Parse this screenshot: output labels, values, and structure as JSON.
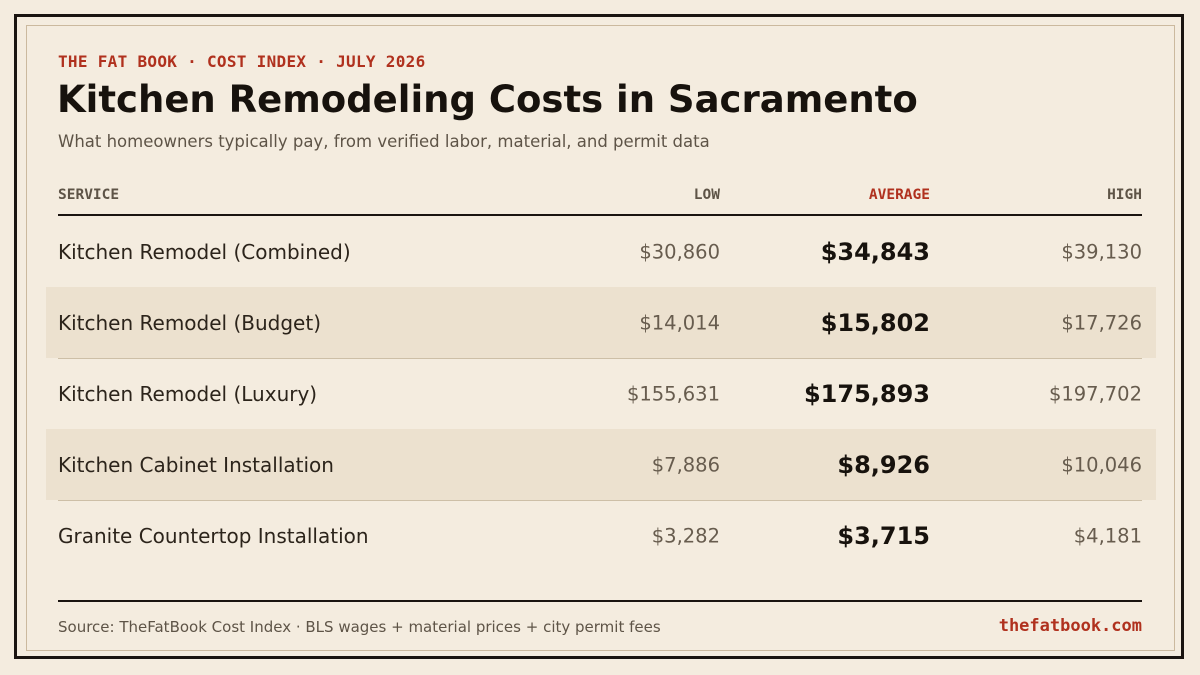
{
  "header": {
    "kicker": "THE FAT BOOK · COST INDEX · JULY 2026",
    "title": "Kitchen Remodeling Costs in Sacramento",
    "subtitle": "What homeowners typically pay, from verified labor, material, and permit data"
  },
  "table": {
    "columns": {
      "service": "SERVICE",
      "low": "LOW",
      "average": "AVERAGE",
      "high": "HIGH"
    },
    "rows": [
      {
        "service": "Kitchen Remodel (Combined)",
        "low": "$30,860",
        "average": "$34,843",
        "high": "$39,130"
      },
      {
        "service": "Kitchen Remodel (Budget)",
        "low": "$14,014",
        "average": "$15,802",
        "high": "$17,726"
      },
      {
        "service": "Kitchen Remodel (Luxury)",
        "low": "$155,631",
        "average": "$175,893",
        "high": "$197,702"
      },
      {
        "service": "Kitchen Cabinet Installation",
        "low": "$7,886",
        "average": "$8,926",
        "high": "$10,046"
      },
      {
        "service": "Granite Countertop Installation",
        "low": "$3,282",
        "average": "$3,715",
        "high": "$4,181"
      }
    ]
  },
  "footer": {
    "source": "Source: TheFatBook Cost Index · BLS wages + material prices + city permit fees",
    "site": "thefatbook.com"
  },
  "colors": {
    "background": "#f4ecdf",
    "accent": "#b0311e",
    "ink": "#17120d",
    "row_shade": "#ece1cf"
  }
}
